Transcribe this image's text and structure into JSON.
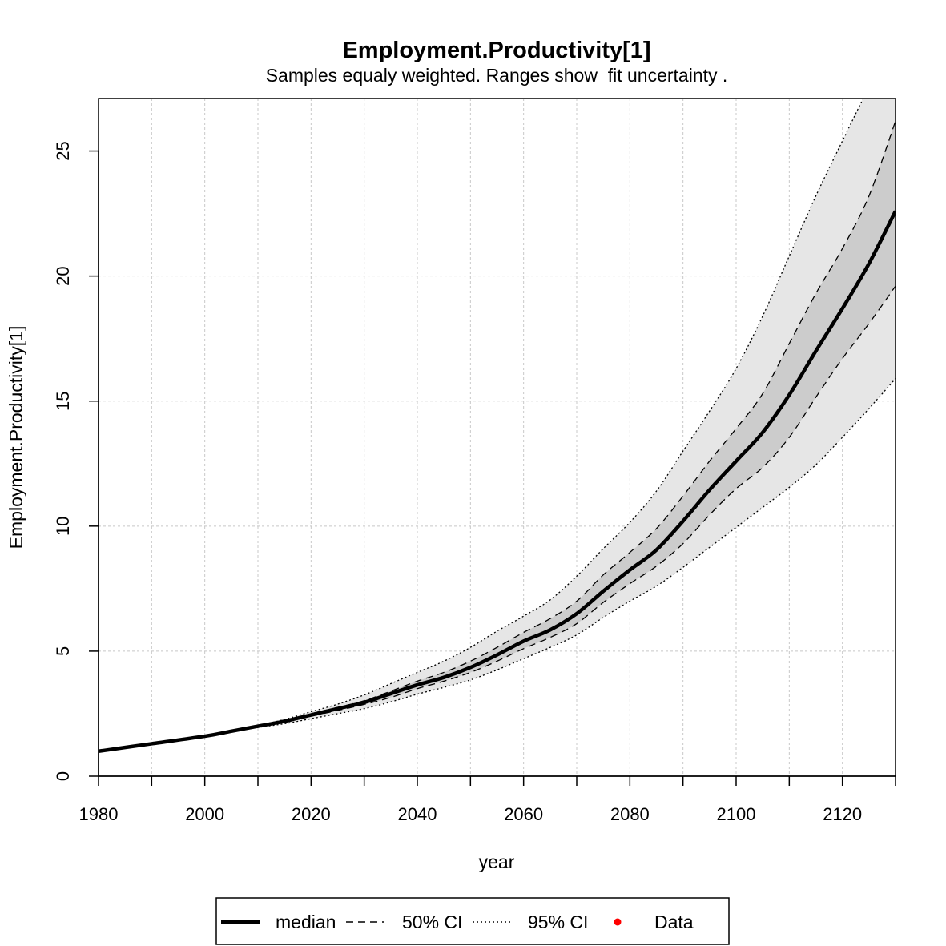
{
  "chart_data": {
    "type": "line",
    "title": "Employment.Productivity[1]",
    "subtitle": "Samples equaly weighted. Ranges show  fit uncertainty .",
    "xlabel": "year",
    "ylabel": "Employment.Productivity[1]",
    "xlim": [
      1980,
      2130
    ],
    "ylim": [
      0,
      27.1
    ],
    "xticks": [
      1980,
      2000,
      2020,
      2040,
      2060,
      2080,
      2100,
      2120
    ],
    "xminor": [
      1990,
      2010,
      2030,
      2050,
      2070,
      2090,
      2110,
      2130
    ],
    "yticks": [
      0,
      5,
      10,
      15,
      20,
      25
    ],
    "grid": true,
    "legend_position": "bottom",
    "legend": [
      {
        "label": "median",
        "style": "thick-solid"
      },
      {
        "label": "50% CI",
        "style": "dashed"
      },
      {
        "label": "95% CI",
        "style": "dotted"
      },
      {
        "label": "Data",
        "style": "red-point"
      }
    ],
    "colors": {
      "ci95_fill": "#e6e6e6",
      "ci50_fill": "#cccccc",
      "line": "#000000",
      "data_point": "#ff0000",
      "grid": "#c8c8c8"
    },
    "x": [
      1980,
      1990,
      2000,
      2005,
      2010,
      2015,
      2020,
      2025,
      2030,
      2035,
      2040,
      2045,
      2050,
      2055,
      2060,
      2065,
      2070,
      2075,
      2080,
      2085,
      2090,
      2095,
      2100,
      2105,
      2110,
      2115,
      2120,
      2125,
      2130
    ],
    "series": [
      {
        "name": "median",
        "values": [
          1.0,
          1.3,
          1.6,
          1.8,
          2.0,
          2.2,
          2.45,
          2.7,
          2.95,
          3.3,
          3.65,
          3.95,
          4.35,
          4.85,
          5.4,
          5.85,
          6.5,
          7.4,
          8.25,
          9.05,
          10.2,
          11.45,
          12.6,
          13.75,
          15.25,
          17.0,
          18.7,
          20.5,
          22.6
        ]
      },
      {
        "name": "50% CI upper",
        "values": [
          1.0,
          1.3,
          1.6,
          1.8,
          2.0,
          2.22,
          2.5,
          2.75,
          3.02,
          3.4,
          3.8,
          4.15,
          4.6,
          5.15,
          5.75,
          6.3,
          7.0,
          8.05,
          8.95,
          9.9,
          11.2,
          12.6,
          13.9,
          15.3,
          17.3,
          19.3,
          21.1,
          23.2,
          26.2
        ]
      },
      {
        "name": "50% CI lower",
        "values": [
          1.0,
          1.3,
          1.6,
          1.8,
          1.98,
          2.17,
          2.4,
          2.63,
          2.87,
          3.15,
          3.5,
          3.8,
          4.15,
          4.6,
          5.1,
          5.55,
          6.1,
          6.95,
          7.7,
          8.4,
          9.3,
          10.45,
          11.5,
          12.35,
          13.55,
          15.15,
          16.7,
          18.1,
          19.6
        ]
      },
      {
        "name": "95% CI upper",
        "values": [
          1.0,
          1.3,
          1.6,
          1.81,
          2.03,
          2.27,
          2.58,
          2.88,
          3.25,
          3.7,
          4.15,
          4.6,
          5.15,
          5.8,
          6.4,
          7.05,
          8.0,
          9.1,
          10.15,
          11.4,
          13.0,
          14.6,
          16.3,
          18.4,
          20.8,
          23.2,
          25.4,
          27.6,
          30.0
        ]
      },
      {
        "name": "95% CI lower",
        "values": [
          1.0,
          1.3,
          1.6,
          1.79,
          1.95,
          2.1,
          2.3,
          2.5,
          2.7,
          2.97,
          3.28,
          3.55,
          3.85,
          4.25,
          4.7,
          5.15,
          5.65,
          6.35,
          7.0,
          7.6,
          8.35,
          9.15,
          9.95,
          10.75,
          11.55,
          12.45,
          13.55,
          14.7,
          15.9
        ]
      }
    ]
  }
}
